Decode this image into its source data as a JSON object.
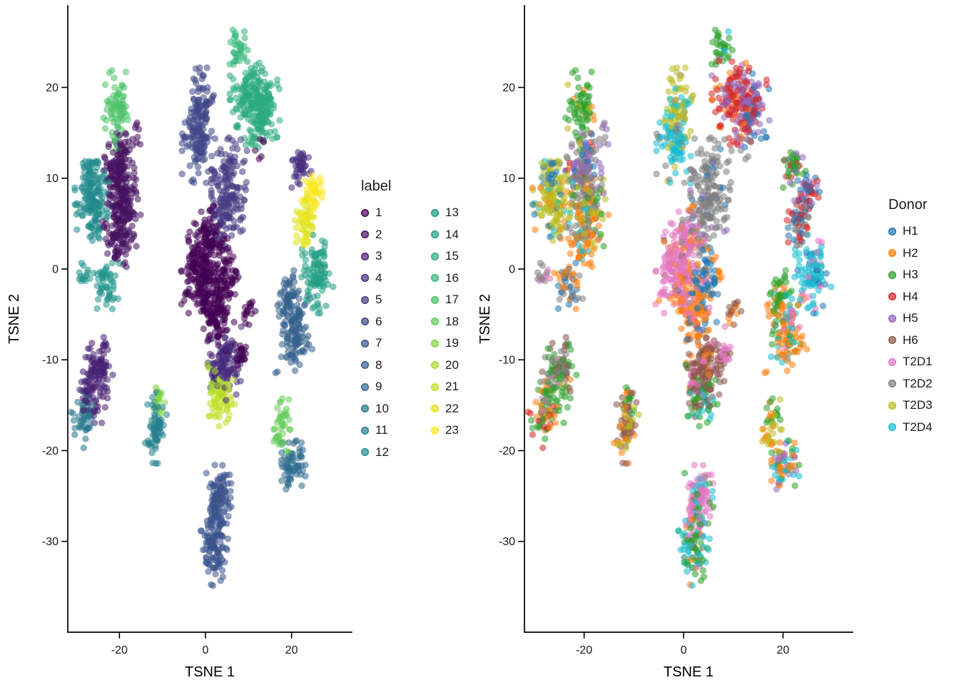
{
  "page": {
    "background": "#ffffff"
  },
  "chart_data": {
    "type": "scatter",
    "description": "Two-panel t-SNE embedding of single cells. Left panel colored by cluster label (1-23, viridis palette); right panel shows the same embedding colored by Donor (tab10 palette). Points are semi-transparent. Clusters are encoded as gaussian blobs (center, spread, count, donor mix) read off the figure.",
    "panels": [
      {
        "xlabel": "TSNE 1",
        "ylabel": "TSNE 2",
        "xticks": [
          -20,
          0,
          20
        ],
        "yticks": [
          20,
          10,
          0,
          -10,
          -20,
          -30
        ],
        "xlim": [
          -32,
          34
        ],
        "ylim": [
          -40,
          29
        ],
        "color_by": "label",
        "legend": {
          "title": "label",
          "columns": 2,
          "entries": [
            "1",
            "2",
            "3",
            "4",
            "5",
            "6",
            "7",
            "8",
            "9",
            "10",
            "11",
            "12",
            "13",
            "14",
            "15",
            "16",
            "17",
            "18",
            "19",
            "20",
            "21",
            "22",
            "23"
          ]
        }
      },
      {
        "xlabel": "TSNE 1",
        "ylabel": "TSNE 2",
        "xticks": [
          -20,
          0,
          20
        ],
        "yticks": [
          20,
          10,
          0,
          -10,
          -20,
          -30
        ],
        "xlim": [
          -32,
          34
        ],
        "ylim": [
          -40,
          29
        ],
        "color_by": "donor",
        "legend": {
          "title": "Donor",
          "columns": 1,
          "entries": [
            "H1",
            "H2",
            "H3",
            "H4",
            "H5",
            "H6",
            "T2D1",
            "T2D2",
            "T2D3",
            "T2D4"
          ]
        }
      }
    ],
    "label_colors": {
      "1": "#440154",
      "2": "#461360",
      "3": "#472172",
      "4": "#472e7d",
      "5": "#453b84",
      "6": "#3f4889",
      "7": "#3a548c",
      "8": "#34608d",
      "9": "#2f6c8e",
      "10": "#2a768e",
      "11": "#26818e",
      "12": "#238b8d",
      "13": "#20958b",
      "14": "#24a085",
      "15": "#2cab80",
      "16": "#37b878",
      "17": "#4cc26a",
      "18": "#68cc5b",
      "19": "#87d549",
      "20": "#a5da35",
      "21": "#c3e02a",
      "22": "#e1e31f",
      "23": "#fde725"
    },
    "donor_colors": {
      "H1": "#1f77b4",
      "H2": "#ff7f0e",
      "H3": "#2ca02c",
      "H4": "#d62728",
      "H5": "#9467bd",
      "H6": "#8c564b",
      "T2D1": "#e377c2",
      "T2D2": "#7f7f7f",
      "T2D3": "#bcbd22",
      "T2D4": "#17becf"
    },
    "point_radius": 4.3,
    "point_alpha": 0.55,
    "seed": 20177,
    "clusters": [
      {
        "label": 17,
        "x": -20.5,
        "y": 17.5,
        "sx": 1.4,
        "sy": 1.9,
        "n": 75,
        "donors": {
          "H3": 0.8,
          "T2D3": 0.1,
          "H2": 0.1
        }
      },
      {
        "label": 2,
        "x": -20,
        "y": 11.5,
        "sx": 1.7,
        "sy": 1.9,
        "n": 110,
        "donors": {
          "H5": 0.4,
          "T2D2": 0.35,
          "H1": 0.15,
          "H4": 0.1
        }
      },
      {
        "label": 2,
        "x": -19,
        "y": 7,
        "sx": 1.7,
        "sy": 2.0,
        "n": 130,
        "donors": {
          "T2D2": 0.45,
          "T2D3": 0.25,
          "H2": 0.15,
          "H3": 0.15
        }
      },
      {
        "label": 2,
        "x": -20.5,
        "y": 3.5,
        "sx": 1.5,
        "sy": 1.5,
        "n": 75,
        "donors": {
          "H2": 0.55,
          "T2D2": 0.2,
          "T2D4": 0.25
        }
      },
      {
        "label": 12,
        "x": -26,
        "y": 7.5,
        "sx": 1.9,
        "sy": 1.9,
        "n": 150,
        "donors": {
          "T2D3": 0.7,
          "H2": 0.1,
          "H1": 0.1,
          "T2D4": 0.1
        }
      },
      {
        "label": 12,
        "x": -27,
        "y": 10.5,
        "sx": 1.0,
        "sy": 0.9,
        "n": 25,
        "donors": {
          "H1": 0.6,
          "T2D3": 0.4
        }
      },
      {
        "label": 13,
        "x": -23,
        "y": -1.5,
        "sx": 1.3,
        "sy": 1.4,
        "n": 50,
        "donors": {
          "H2": 0.5,
          "T2D2": 0.25,
          "H1": 0.25
        }
      },
      {
        "label": 13,
        "x": -28.5,
        "y": -0.5,
        "sx": 0.8,
        "sy": 0.9,
        "n": 14,
        "donors": {
          "T2D1": 0.5,
          "T2D2": 0.5
        }
      },
      {
        "label": 3,
        "x": -25,
        "y": -10.5,
        "sx": 1.5,
        "sy": 1.3,
        "n": 65,
        "donors": {
          "T2D2": 0.4,
          "H6": 0.3,
          "H3": 0.3
        }
      },
      {
        "label": 3,
        "x": -26,
        "y": -13.5,
        "sx": 1.4,
        "sy": 1.5,
        "n": 65,
        "donors": {
          "H3": 0.65,
          "H2": 0.2,
          "T2D1": 0.15
        }
      },
      {
        "label": 10,
        "x": -28.5,
        "y": -16.5,
        "sx": 1.2,
        "sy": 1.5,
        "n": 45,
        "donors": {
          "H3": 0.45,
          "H2": 0.3,
          "H4": 0.25
        }
      },
      {
        "label": 6,
        "x": -1,
        "y": 17.8,
        "sx": 1.3,
        "sy": 1.9,
        "n": 75,
        "donors": {
          "T2D3": 0.7,
          "T2D4": 0.2,
          "H5": 0.1
        }
      },
      {
        "label": 6,
        "x": -2,
        "y": 13.8,
        "sx": 1.5,
        "sy": 1.9,
        "n": 95,
        "donors": {
          "T2D4": 0.65,
          "T2D2": 0.2,
          "T2D3": 0.15
        }
      },
      {
        "label": 16,
        "x": 7.5,
        "y": 24.5,
        "sx": 1.0,
        "sy": 1.1,
        "n": 30,
        "donors": {
          "H3": 0.85,
          "T2D4": 0.15
        }
      },
      {
        "label": 15,
        "x": 10.5,
        "y": 18.5,
        "sx": 2.1,
        "sy": 2.1,
        "n": 160,
        "donors": {
          "H4": 0.65,
          "H5": 0.2,
          "H2": 0.15
        }
      },
      {
        "label": 15,
        "x": 13.8,
        "y": 18,
        "sx": 1.5,
        "sy": 2.0,
        "n": 95,
        "donors": {
          "H5": 0.55,
          "H4": 0.2,
          "H1": 0.25
        }
      },
      {
        "label": 1,
        "x": -1,
        "y": 0,
        "sx": 2.0,
        "sy": 2.2,
        "n": 185,
        "donors": {
          "T2D1": 0.85,
          "H2": 0.1,
          "H6": 0.05
        }
      },
      {
        "label": 1,
        "x": 2.5,
        "y": -4.5,
        "sx": 1.8,
        "sy": 2.2,
        "n": 145,
        "donors": {
          "H2": 0.7,
          "T2D1": 0.15,
          "H1": 0.15
        }
      },
      {
        "label": 1,
        "x": 5,
        "y": -0.5,
        "sx": 1.2,
        "sy": 1.4,
        "n": 50,
        "donors": {
          "H1": 0.65,
          "H2": 0.35
        }
      },
      {
        "label": 5,
        "x": 5.5,
        "y": 8.5,
        "sx": 1.8,
        "sy": 2.6,
        "n": 170,
        "donors": {
          "T2D2": 0.8,
          "H5": 0.1,
          "H1": 0.1
        }
      },
      {
        "label": 1,
        "x": 1.5,
        "y": 3.5,
        "sx": 1.6,
        "sy": 1.5,
        "n": 80,
        "donors": {
          "T2D1": 0.55,
          "T2D2": 0.25,
          "H2": 0.2
        }
      },
      {
        "label": 4,
        "x": 4.5,
        "y": -10.5,
        "sx": 1.7,
        "sy": 1.8,
        "n": 120,
        "donors": {
          "H6": 0.8,
          "T2D1": 0.1,
          "H2": 0.1
        }
      },
      {
        "label": 1,
        "x": 8,
        "y": -9.5,
        "sx": 0.9,
        "sy": 1.0,
        "n": 26,
        "donors": {
          "T2D1": 0.75,
          "H6": 0.25
        }
      },
      {
        "label": 1,
        "x": 10,
        "y": -4.5,
        "sx": 0.8,
        "sy": 0.8,
        "n": 16,
        "donors": {
          "H6": 0.7,
          "H2": 0.3
        }
      },
      {
        "label": 20,
        "x": 3.2,
        "y": -12.6,
        "sx": 1.2,
        "sy": 0.9,
        "n": 30,
        "donors": {
          "H6": 0.4,
          "H3": 0.3,
          "T2D1": 0.3
        }
      },
      {
        "label": 21,
        "x": 3.8,
        "y": -14.8,
        "sx": 1.3,
        "sy": 1.2,
        "n": 60,
        "donors": {
          "H3": 0.4,
          "H6": 0.3,
          "T2D4": 0.3
        }
      },
      {
        "label": 19,
        "x": -11,
        "y": -14.8,
        "sx": 0.9,
        "sy": 0.8,
        "n": 18,
        "donors": {
          "H6": 0.5,
          "H3": 0.5
        }
      },
      {
        "label": 11,
        "x": -11.5,
        "y": -17.5,
        "sx": 1.1,
        "sy": 1.7,
        "n": 70,
        "donors": {
          "H6": 0.45,
          "T2D3": 0.3,
          "H2": 0.25
        }
      },
      {
        "label": 8,
        "x": 19.3,
        "y": -3.5,
        "sx": 1.3,
        "sy": 1.6,
        "n": 65,
        "k": 0.35,
        "donors": {
          "H3": 0.55,
          "H2": 0.25,
          "T2D4": 0.2
        }
      },
      {
        "label": 8,
        "x": 20.5,
        "y": -7.5,
        "sx": 1.4,
        "sy": 2.0,
        "n": 95,
        "k": 0.5,
        "donors": {
          "H2": 0.55,
          "T2D1": 0.15,
          "H3": 0.15,
          "T2D4": 0.15
        }
      },
      {
        "label": 14,
        "x": 26,
        "y": -0.5,
        "sx": 1.6,
        "sy": 1.9,
        "n": 105,
        "donors": {
          "T2D4": 0.7,
          "T2D1": 0.15,
          "H1": 0.15
        }
      },
      {
        "label": 23,
        "x": 24.8,
        "y": 8.5,
        "sx": 1.1,
        "sy": 1.2,
        "n": 45,
        "donors": {
          "H4": 0.35,
          "H5": 0.3,
          "H1": 0.35
        }
      },
      {
        "label": 22,
        "x": 23.3,
        "y": 5,
        "sx": 1.1,
        "sy": 1.5,
        "n": 55,
        "donors": {
          "H4": 0.4,
          "H1": 0.3,
          "T2D2": 0.3
        }
      },
      {
        "label": 4,
        "x": 22,
        "y": 11.5,
        "sx": 1.1,
        "sy": 1.1,
        "n": 40,
        "donors": {
          "H3": 0.6,
          "H5": 0.25,
          "H4": 0.15
        }
      },
      {
        "label": 18,
        "x": 17.8,
        "y": -17,
        "sx": 1.1,
        "sy": 1.6,
        "n": 45,
        "k": 0.3,
        "donors": {
          "H3": 0.4,
          "T2D3": 0.3,
          "H2": 0.3
        }
      },
      {
        "label": 9,
        "x": 20,
        "y": -21.5,
        "sx": 1.4,
        "sy": 1.3,
        "n": 65,
        "donors": {
          "H2": 0.3,
          "H3": 0.2,
          "H5": 0.2,
          "T2D4": 0.3
        }
      },
      {
        "label": 7,
        "x": 3,
        "y": -25.5,
        "sx": 1.3,
        "sy": 1.7,
        "n": 110,
        "donors": {
          "T2D1": 0.65,
          "H3": 0.2,
          "T2D4": 0.15
        }
      },
      {
        "label": 7,
        "x": 2,
        "y": -30.5,
        "sx": 1.4,
        "sy": 1.9,
        "n": 105,
        "donors": {
          "H3": 0.35,
          "T2D4": 0.3,
          "H2": 0.2,
          "T2D1": 0.15
        }
      },
      {
        "label": 2,
        "x": -16,
        "y": 14.5,
        "sx": 0.7,
        "sy": 0.7,
        "n": 7,
        "donors": {
          "H5": 0.5,
          "T2D2": 0.5
        }
      },
      {
        "label": 1,
        "x": 12.5,
        "y": 13,
        "sx": 0.7,
        "sy": 0.7,
        "n": 6,
        "donors": {
          "T2D2": 1.0
        }
      },
      {
        "label": 8,
        "x": 24,
        "y": -8.5,
        "sx": 0.6,
        "sy": 0.6,
        "n": 5,
        "donors": {
          "H2": 1.0
        }
      }
    ]
  }
}
